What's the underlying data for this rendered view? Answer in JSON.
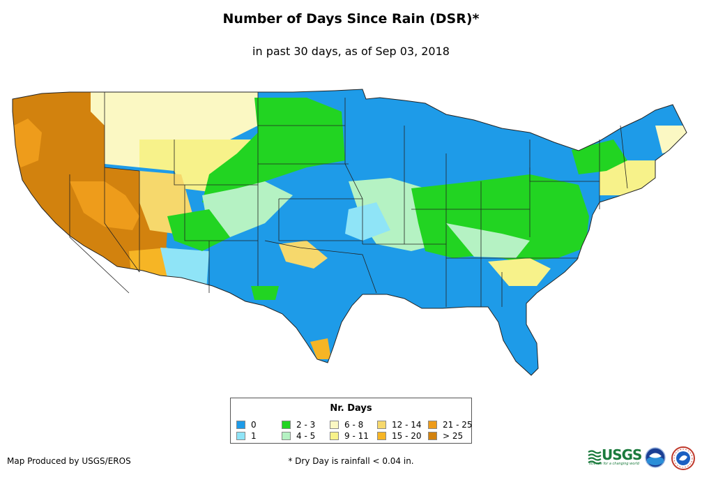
{
  "title": "Number of Days Since Rain (DSR)*",
  "subtitle": "in past 30 days, as of Sep 03, 2018",
  "legend": {
    "title": "Nr. Days",
    "items": [
      {
        "label": "0",
        "color": "#1e9be8"
      },
      {
        "label": "1",
        "color": "#8fe4f7"
      },
      {
        "label": "2 - 3",
        "color": "#22d422"
      },
      {
        "label": "4 - 5",
        "color": "#b5f2c3"
      },
      {
        "label": "6 - 8",
        "color": "#fbf8c3"
      },
      {
        "label": "9 - 11",
        "color": "#f7f28a"
      },
      {
        "label": "12 - 14",
        "color": "#f6d86c"
      },
      {
        "label": "15 - 20",
        "color": "#f6b525"
      },
      {
        "label": "21 - 25",
        "color": "#ee9c1b"
      },
      {
        "label": "> 25",
        "color": "#d2820e"
      }
    ]
  },
  "credit": "Map Produced by USGS/EROS",
  "footnote": "* Dry Day is rainfall < 0.04 in.",
  "logos": {
    "usgs": "USGS",
    "usgs_tagline": "science for a changing world",
    "noaa": "noaa-logo",
    "nws": "nws-logo"
  },
  "map": {
    "region": "Contiguous United States",
    "predominant": {
      "pacific-coast": "> 25",
      "great-basin": "> 25",
      "northern-rockies": "6 - 8",
      "northern-plains": "2 - 3",
      "central-plains": "0",
      "southwest": "0",
      "desert-southwest": "15 - 20",
      "ohio-valley": "2 - 3",
      "southeast": "0",
      "great-lakes": "0",
      "new-england": "9 - 11"
    }
  }
}
